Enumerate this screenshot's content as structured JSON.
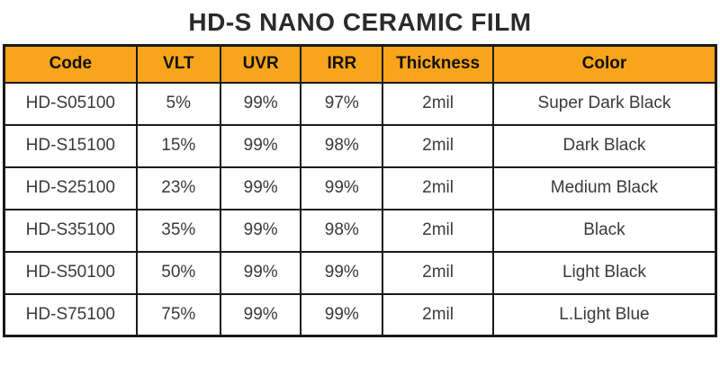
{
  "page": {
    "title": "HD-S NANO CERAMIC FILM"
  },
  "colors": {
    "header_bg": "#f9a51b",
    "border": "#1a1a1a",
    "title_text": "#2b2b2b",
    "cell_text": "#3a3a3a"
  },
  "table": {
    "headers": [
      "Code",
      "VLT",
      "UVR",
      "IRR",
      "Thickness",
      "Color"
    ],
    "column_widths_percent": [
      18.6,
      11.8,
      11.3,
      11.5,
      15.5,
      31.3
    ],
    "rows": [
      [
        "HD-S05100",
        "5%",
        "99%",
        "97%",
        "2mil",
        "Super Dark Black"
      ],
      [
        "HD-S15100",
        "15%",
        "99%",
        "98%",
        "2mil",
        "Dark Black"
      ],
      [
        "HD-S25100",
        "23%",
        "99%",
        "99%",
        "2mil",
        "Medium Black"
      ],
      [
        "HD-S35100",
        "35%",
        "99%",
        "98%",
        "2mil",
        "Black"
      ],
      [
        "HD-S50100",
        "50%",
        "99%",
        "99%",
        "2mil",
        "Light Black"
      ],
      [
        "HD-S75100",
        "75%",
        "99%",
        "99%",
        "2mil",
        "L.Light Blue"
      ]
    ]
  }
}
